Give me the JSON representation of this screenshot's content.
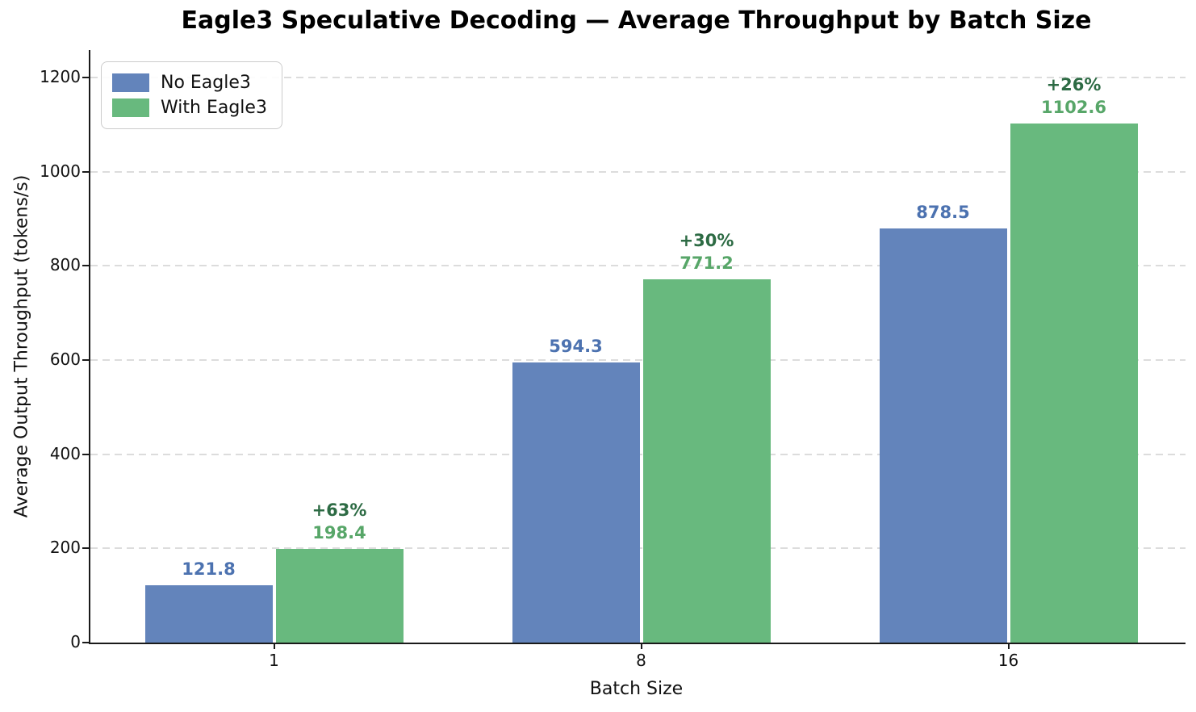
{
  "chart_data": {
    "type": "bar",
    "title": "Eagle3 Speculative Decoding — Average Throughput by Batch Size",
    "xlabel": "Batch Size",
    "ylabel": "Average Output Throughput (tokens/s)",
    "categories": [
      "1",
      "8",
      "16"
    ],
    "series": [
      {
        "name": "No Eagle3",
        "color": "#6384BB",
        "label_color": "#4C72B0",
        "values": [
          121.8,
          594.3,
          878.5
        ],
        "value_labels": [
          "121.8",
          "594.3",
          "878.5"
        ]
      },
      {
        "name": "With Eagle3",
        "color": "#68B97E",
        "label_color": "#57A668",
        "pct_color": "#2D6B44",
        "values": [
          198.4,
          771.2,
          1102.6
        ],
        "value_labels": [
          "198.4",
          "771.2",
          "1102.6"
        ],
        "pct_labels": [
          "+63%",
          "+30%",
          "+26%"
        ]
      }
    ],
    "yticks": [
      0,
      200,
      400,
      600,
      800,
      1000,
      1200
    ],
    "ylim": [
      0,
      1258
    ],
    "grid": "horizontal-dashed",
    "grid_color": "#DCDCDC",
    "legend_position": "upper-left"
  }
}
